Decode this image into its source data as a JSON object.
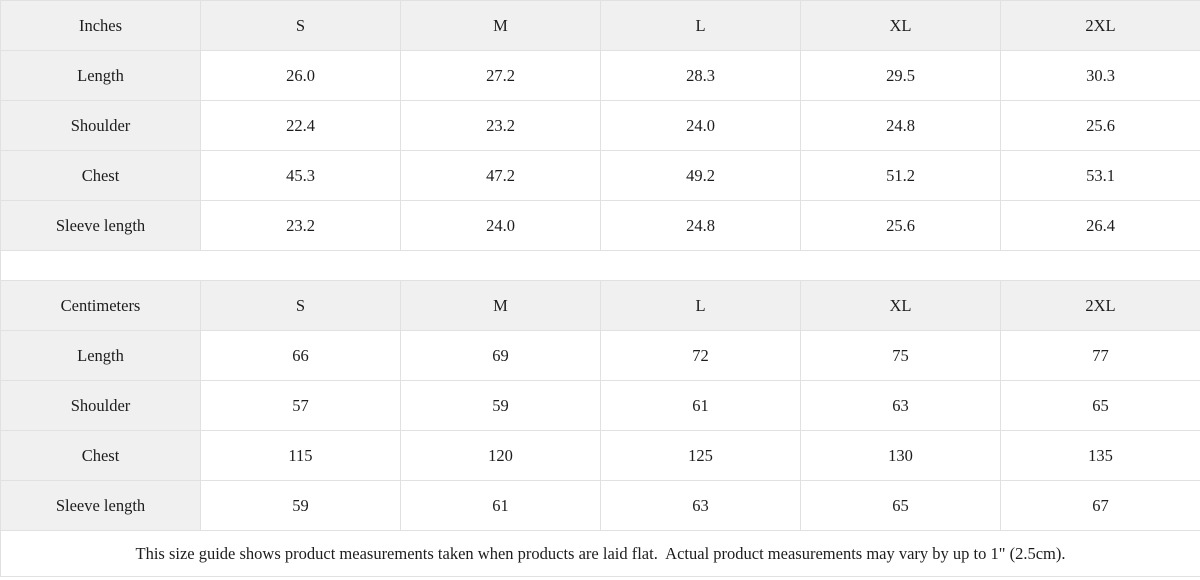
{
  "colors": {
    "header_bg": "#f0f0f0",
    "border": "#e1e1e1",
    "text": "#1d1d1d"
  },
  "tables": [
    {
      "unit_header": "Inches",
      "sizes": [
        "S",
        "M",
        "L",
        "XL",
        "2XL"
      ],
      "rows": [
        {
          "label": "Length",
          "values": [
            "26.0",
            "27.2",
            "28.3",
            "29.5",
            "30.3"
          ]
        },
        {
          "label": "Shoulder",
          "values": [
            "22.4",
            "23.2",
            "24.0",
            "24.8",
            "25.6"
          ]
        },
        {
          "label": "Chest",
          "values": [
            "45.3",
            "47.2",
            "49.2",
            "51.2",
            "53.1"
          ]
        },
        {
          "label": "Sleeve length",
          "values": [
            "23.2",
            "24.0",
            "24.8",
            "25.6",
            "26.4"
          ]
        }
      ]
    },
    {
      "unit_header": "Centimeters",
      "sizes": [
        "S",
        "M",
        "L",
        "XL",
        "2XL"
      ],
      "rows": [
        {
          "label": "Length",
          "values": [
            "66",
            "69",
            "72",
            "75",
            "77"
          ]
        },
        {
          "label": "Shoulder",
          "values": [
            "57",
            "59",
            "61",
            "63",
            "65"
          ]
        },
        {
          "label": "Chest",
          "values": [
            "115",
            "120",
            "125",
            "130",
            "135"
          ]
        },
        {
          "label": "Sleeve length",
          "values": [
            "59",
            "61",
            "63",
            "65",
            "67"
          ]
        }
      ]
    }
  ],
  "footer_note": "This size guide shows product measurements taken when products are laid flat.  Actual product measurements may vary by up to 1\" (2.5cm)."
}
